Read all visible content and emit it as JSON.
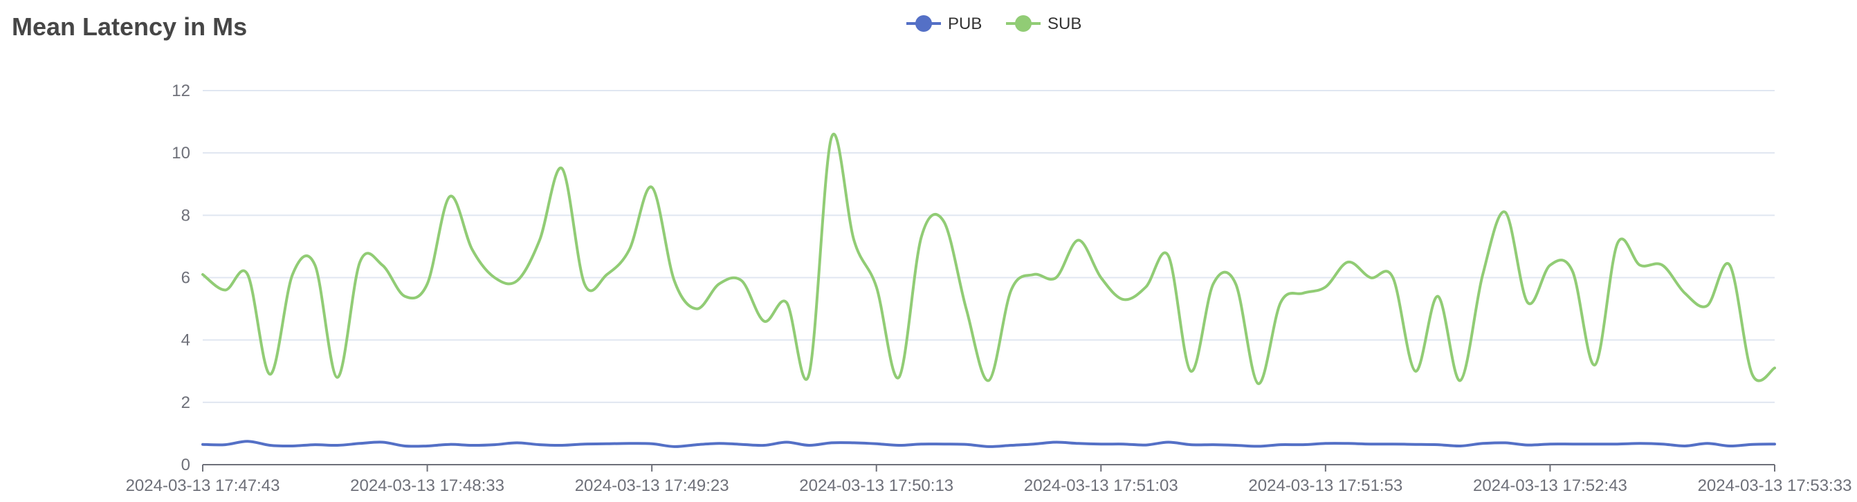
{
  "chart_data": {
    "type": "line",
    "title": "Mean Latency in Ms",
    "xlabel": "",
    "ylabel": "",
    "ylim": [
      0,
      12
    ],
    "yticks": [
      0,
      2,
      4,
      6,
      8,
      10,
      12
    ],
    "grid": true,
    "legend_position": "top-center",
    "x_tick_labels": [
      "2024-03-13 17:47:43",
      "2024-03-13 17:48:33",
      "2024-03-13 17:49:23",
      "2024-03-13 17:50:13",
      "2024-03-13 17:51:03",
      "2024-03-13 17:51:53",
      "2024-03-13 17:52:43",
      "2024-03-13 17:53:33"
    ],
    "x_start": "2024-03-13 17:47:43",
    "x_end": "2024-03-13 17:53:33",
    "sample_interval_seconds": 5,
    "series": [
      {
        "name": "PUB",
        "color": "#5470c6",
        "values": [
          0.65,
          0.64,
          0.75,
          0.62,
          0.6,
          0.64,
          0.62,
          0.68,
          0.72,
          0.6,
          0.6,
          0.65,
          0.62,
          0.64,
          0.7,
          0.64,
          0.62,
          0.66,
          0.67,
          0.68,
          0.67,
          0.58,
          0.64,
          0.68,
          0.65,
          0.62,
          0.72,
          0.62,
          0.7,
          0.7,
          0.67,
          0.62,
          0.66,
          0.66,
          0.65,
          0.58,
          0.62,
          0.66,
          0.72,
          0.68,
          0.66,
          0.66,
          0.63,
          0.72,
          0.64,
          0.64,
          0.62,
          0.59,
          0.64,
          0.64,
          0.68,
          0.68,
          0.66,
          0.66,
          0.65,
          0.64,
          0.6,
          0.68,
          0.7,
          0.63,
          0.66,
          0.66,
          0.66,
          0.66,
          0.68,
          0.66,
          0.6,
          0.68,
          0.6,
          0.65,
          0.66
        ]
      },
      {
        "name": "SUB",
        "color": "#91cc75",
        "values": [
          6.1,
          5.6,
          6.1,
          2.9,
          6.1,
          6.4,
          2.8,
          6.5,
          6.4,
          5.4,
          5.8,
          8.6,
          6.9,
          6.0,
          5.9,
          7.2,
          9.5,
          5.8,
          6.1,
          6.9,
          8.9,
          5.9,
          5.0,
          5.8,
          5.9,
          4.6,
          5.2,
          2.9,
          10.5,
          7.2,
          5.7,
          2.8,
          7.3,
          7.8,
          5.0,
          2.7,
          5.6,
          6.1,
          6.0,
          7.2,
          6.0,
          5.3,
          5.7,
          6.7,
          3.0,
          5.8,
          5.8,
          2.6,
          5.2,
          5.5,
          5.7,
          6.5,
          6.0,
          6.0,
          3.0,
          5.4,
          2.7,
          6.1,
          8.1,
          5.2,
          6.4,
          6.2,
          3.2,
          7.1,
          6.4,
          6.4,
          5.5,
          5.1,
          6.4,
          2.9,
          3.1
        ]
      }
    ]
  }
}
